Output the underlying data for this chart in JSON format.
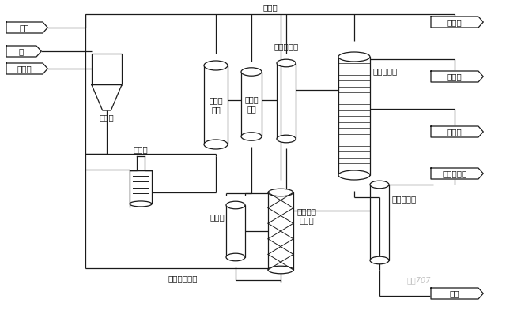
{
  "bg_color": "#ffffff",
  "line_color": "#1a1a1a",
  "labels": {
    "hydrogen": "氢气",
    "coal": "煤",
    "catalyst": "催化剂",
    "coal_slurry_tank": "煤浆罐",
    "preheater": "预热器",
    "liquefaction_reactor": "液化反\n应器",
    "high_temp_separator": "高温分\n离器",
    "low_temp_separator": "低温分离器",
    "atm_distillation": "常压蒸馏塔",
    "separator": "分离罐",
    "solvent_hydro_reactor": "溶剂加氢\n反应器",
    "vacuum_distillation": "减压蒸馏塔",
    "recycle_hydrogen": "循环氢",
    "fuel_gas": "燃料气",
    "light_oil": "轻质油",
    "medium_oil": "中质油",
    "hydro_naphtha": "加氢石脑油",
    "residue": "残渣",
    "hydro_recycle_solvent": "加氢循环溶剂"
  },
  "font_size": 7.5,
  "lw": 0.9
}
